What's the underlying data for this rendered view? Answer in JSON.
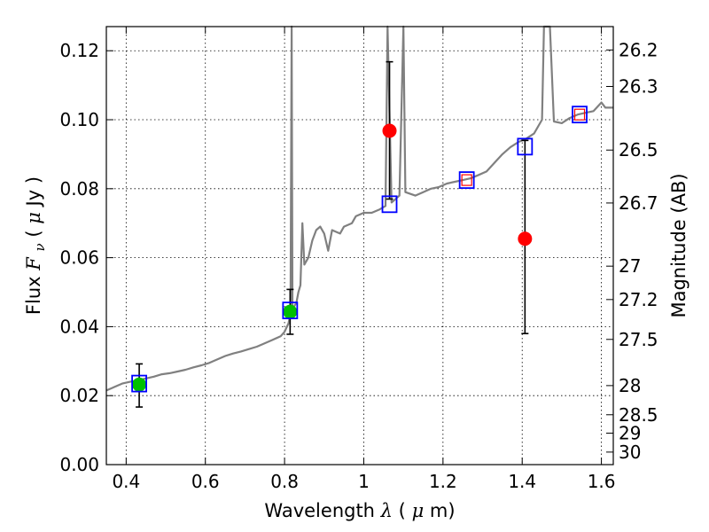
{
  "chart_data": {
    "type": "scatter",
    "xlabel_prefix": "Wavelength ",
    "xlabel_symbol": "λ",
    "xlabel_unit_open": " (",
    "xlabel_unit_mu": "μ",
    "xlabel_unit_rest": "m)",
    "ylabel_prefix": "Flux ",
    "ylabel_symbol": "F",
    "ylabel_subscript": "ν",
    "ylabel_unit_open": " ( ",
    "ylabel_unit_mu": "μ",
    "ylabel_unit_rest": "Jy )",
    "y2label": "Magnitude (AB)",
    "xlim": [
      0.35,
      1.63
    ],
    "ylim": [
      0.0,
      0.127
    ],
    "xticks": [
      0.4,
      0.6,
      0.8,
      1.0,
      1.2,
      1.4,
      1.6
    ],
    "xtick_labels": [
      "0.4",
      "0.6",
      "0.8",
      "1",
      "1.2",
      "1.4",
      "1.6"
    ],
    "yticks": [
      0.0,
      0.02,
      0.04,
      0.06,
      0.08,
      0.1,
      0.12
    ],
    "ytick_labels": [
      "0.00",
      "0.02",
      "0.04",
      "0.06",
      "0.08",
      "0.10",
      "0.12"
    ],
    "mag_ticks": [
      26.2,
      26.3,
      26.5,
      26.7,
      27,
      27.2,
      27.5,
      28,
      28.5,
      29,
      30
    ],
    "mag_tick_labels": [
      "26.2",
      "26.3",
      "26.5",
      "26.7",
      "27",
      "27.2",
      "27.5",
      "28",
      "28.5",
      "29",
      "30"
    ],
    "grid": true,
    "colors": {
      "model": "#808080",
      "detection": "#00c000",
      "measured": "#ff0000",
      "model_band": "#0000ff",
      "errorbar": "#000000"
    },
    "model_spectrum": [
      [
        0.35,
        0.0215
      ],
      [
        0.37,
        0.0225
      ],
      [
        0.39,
        0.0235
      ],
      [
        0.41,
        0.024
      ],
      [
        0.43,
        0.0245
      ],
      [
        0.45,
        0.025
      ],
      [
        0.47,
        0.0255
      ],
      [
        0.49,
        0.0262
      ],
      [
        0.51,
        0.0265
      ],
      [
        0.53,
        0.027
      ],
      [
        0.55,
        0.0275
      ],
      [
        0.57,
        0.0282
      ],
      [
        0.59,
        0.0288
      ],
      [
        0.61,
        0.0295
      ],
      [
        0.63,
        0.0305
      ],
      [
        0.65,
        0.0315
      ],
      [
        0.67,
        0.0322
      ],
      [
        0.69,
        0.0328
      ],
      [
        0.71,
        0.0335
      ],
      [
        0.73,
        0.0342
      ],
      [
        0.75,
        0.0352
      ],
      [
        0.77,
        0.0362
      ],
      [
        0.79,
        0.0372
      ],
      [
        0.8,
        0.0385
      ],
      [
        0.81,
        0.041
      ],
      [
        0.815,
        0.044
      ],
      [
        0.818,
        0.127
      ],
      [
        0.82,
        0.045
      ],
      [
        0.83,
        0.047
      ],
      [
        0.835,
        0.05
      ],
      [
        0.84,
        0.052
      ],
      [
        0.845,
        0.07
      ],
      [
        0.85,
        0.058
      ],
      [
        0.86,
        0.06
      ],
      [
        0.87,
        0.065
      ],
      [
        0.88,
        0.068
      ],
      [
        0.89,
        0.069
      ],
      [
        0.9,
        0.067
      ],
      [
        0.91,
        0.062
      ],
      [
        0.92,
        0.068
      ],
      [
        0.94,
        0.067
      ],
      [
        0.95,
        0.069
      ],
      [
        0.97,
        0.07
      ],
      [
        0.98,
        0.072
      ],
      [
        1.0,
        0.073
      ],
      [
        1.02,
        0.073
      ],
      [
        1.04,
        0.074
      ],
      [
        1.055,
        0.075
      ],
      [
        1.06,
        0.127
      ],
      [
        1.07,
        0.076
      ],
      [
        1.09,
        0.078
      ],
      [
        1.1,
        0.127
      ],
      [
        1.105,
        0.079
      ],
      [
        1.13,
        0.078
      ],
      [
        1.15,
        0.079
      ],
      [
        1.17,
        0.08
      ],
      [
        1.19,
        0.0805
      ],
      [
        1.21,
        0.0815
      ],
      [
        1.23,
        0.082
      ],
      [
        1.25,
        0.0825
      ],
      [
        1.27,
        0.083
      ],
      [
        1.29,
        0.084
      ],
      [
        1.31,
        0.085
      ],
      [
        1.33,
        0.0875
      ],
      [
        1.35,
        0.09
      ],
      [
        1.37,
        0.092
      ],
      [
        1.39,
        0.0935
      ],
      [
        1.41,
        0.0945
      ],
      [
        1.43,
        0.096
      ],
      [
        1.45,
        0.1
      ],
      [
        1.455,
        0.127
      ],
      [
        1.47,
        0.127
      ],
      [
        1.48,
        0.0995
      ],
      [
        1.5,
        0.099
      ],
      [
        1.52,
        0.1005
      ],
      [
        1.54,
        0.1015
      ],
      [
        1.56,
        0.102
      ],
      [
        1.58,
        0.1025
      ],
      [
        1.6,
        0.105
      ],
      [
        1.61,
        0.1035
      ],
      [
        1.63,
        0.1035
      ]
    ],
    "detections": [
      {
        "x": 0.433,
        "y": 0.0232,
        "yerr_low": 0.0065,
        "yerr_high": 0.006
      },
      {
        "x": 0.814,
        "y": 0.0443,
        "yerr_low": 0.0065,
        "yerr_high": 0.0065
      }
    ],
    "measured_points": [
      {
        "x": 1.065,
        "y": 0.0968,
        "yerr_low": 0.0198,
        "yerr_high": 0.02
      },
      {
        "x": 1.407,
        "y": 0.0655,
        "yerr_low": 0.0275,
        "yerr_high": 0.0285
      }
    ],
    "model_bands": [
      {
        "x": 0.433,
        "y": 0.0235
      },
      {
        "x": 0.814,
        "y": 0.0447
      },
      {
        "x": 1.065,
        "y": 0.0755
      },
      {
        "x": 1.26,
        "y": 0.0825
      },
      {
        "x": 1.407,
        "y": 0.0922
      },
      {
        "x": 1.545,
        "y": 0.1015
      }
    ],
    "band_small_markers": [
      {
        "x": 1.26,
        "y": 0.0825
      },
      {
        "x": 1.545,
        "y": 0.1015
      }
    ]
  }
}
